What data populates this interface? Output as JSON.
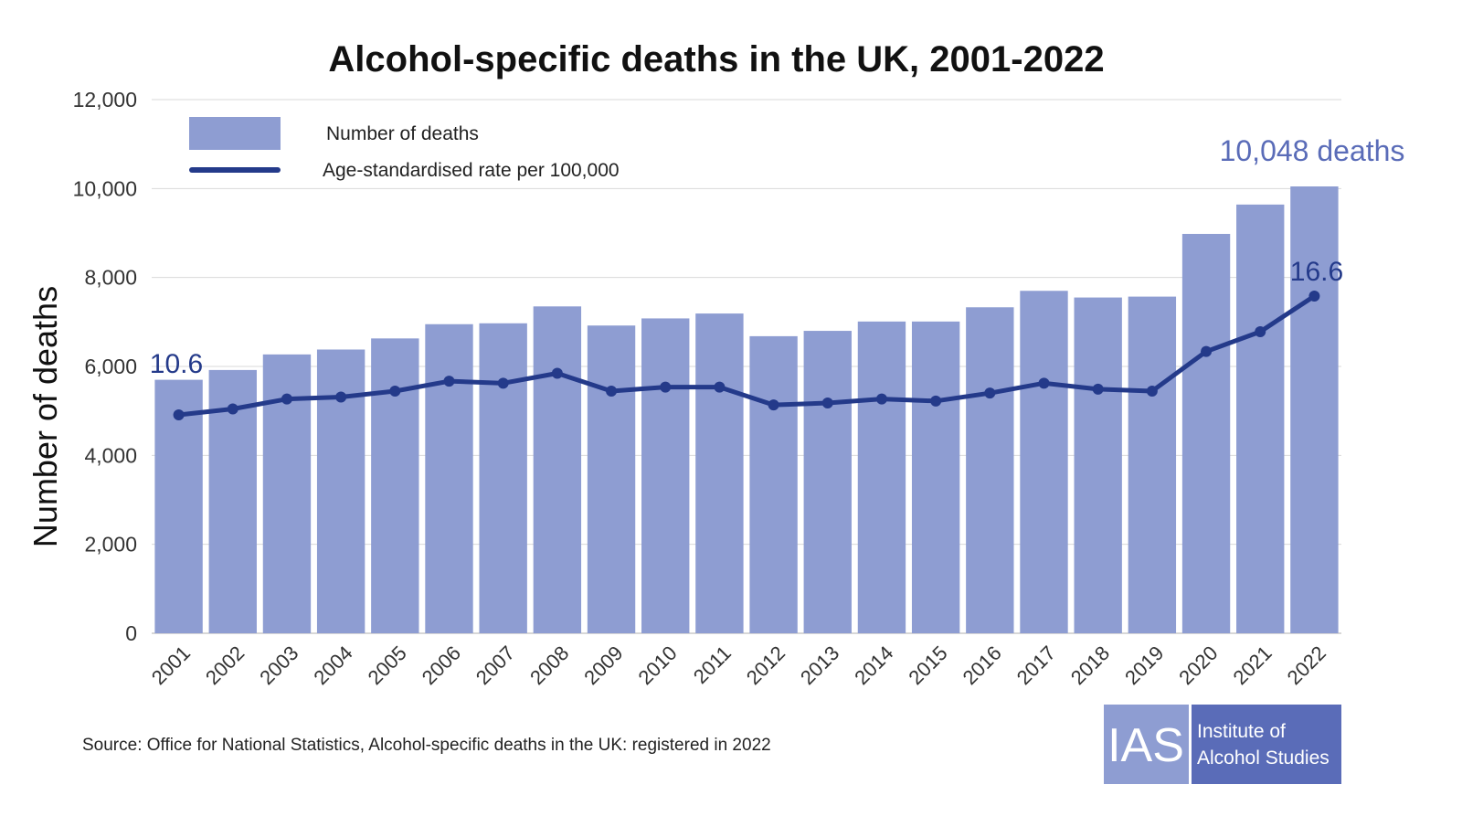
{
  "chart_data": {
    "type": "bar",
    "title": "Alcohol-specific deaths in the UK, 2001-2022",
    "ylabel": "Number of deaths",
    "ylim": [
      0,
      12000
    ],
    "yticks": [
      "0",
      "2,000",
      "4,000",
      "6,000",
      "8,000",
      "10,000",
      "12,000"
    ],
    "ytick_values": [
      0,
      2000,
      4000,
      6000,
      8000,
      10000,
      12000
    ],
    "grid": true,
    "legend_position": "top-left",
    "categories": [
      "2001",
      "2002",
      "2003",
      "2004",
      "2005",
      "2006",
      "2007",
      "2008",
      "2009",
      "2010",
      "2011",
      "2012",
      "2013",
      "2014",
      "2015",
      "2016",
      "2017",
      "2018",
      "2019",
      "2020",
      "2021",
      "2022"
    ],
    "series": [
      {
        "name": "Number of deaths",
        "type": "bar",
        "color": "#8e9dd2",
        "values": [
          5700,
          5920,
          6270,
          6380,
          6630,
          6950,
          6970,
          7350,
          6920,
          7080,
          7190,
          6680,
          6800,
          7010,
          7010,
          7330,
          7700,
          7550,
          7570,
          8980,
          9640,
          10048
        ]
      },
      {
        "name": "Age-standardised rate per 100,000",
        "type": "line",
        "color": "#243a8a",
        "axis_note": "rate drawn on its own scale relative to the bars; endpoints labelled 10.6 and 16.6",
        "values": [
          10.6,
          10.9,
          11.4,
          11.5,
          11.8,
          12.3,
          12.2,
          12.7,
          11.8,
          12.0,
          12.0,
          11.1,
          11.2,
          11.4,
          11.3,
          11.7,
          12.2,
          11.9,
          11.8,
          13.8,
          14.8,
          16.6
        ]
      }
    ],
    "annotations": {
      "first_rate": "10.6",
      "last_rate": "16.6",
      "last_deaths": "10,048 deaths"
    }
  },
  "source": "Source: Office for National Statistics, Alcohol-specific deaths in the UK: registered in 2022",
  "logo": {
    "abbr": "IAS",
    "line1": "Institute of",
    "line2": "Alcohol Studies",
    "color_left": "#8e9dd2",
    "color_right": "#5a6cb8"
  },
  "colors": {
    "bar": "#8e9dd2",
    "line": "#243a8a",
    "annotation_big": "#5a6cb8",
    "annotation_rate": "#243a8a",
    "grid": "#d9d9d9"
  }
}
